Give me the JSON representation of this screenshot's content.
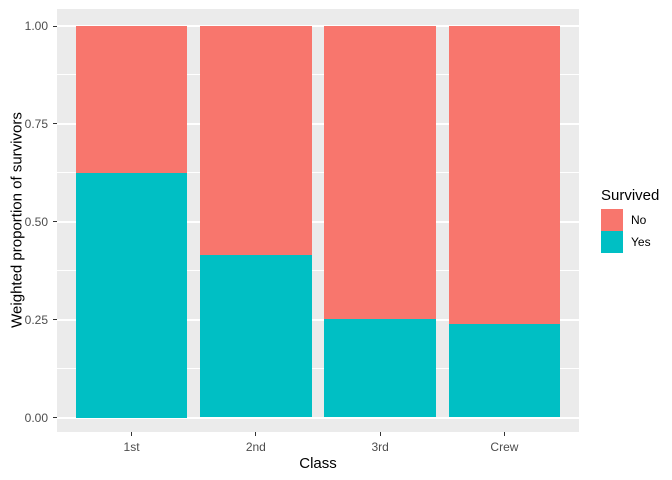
{
  "chart_data": {
    "type": "bar",
    "stacking": "fill",
    "title": "",
    "xlabel": "Class",
    "ylabel": "Weighted proportion of survivors",
    "categories": [
      "1st",
      "2nd",
      "3rd",
      "Crew"
    ],
    "series": [
      {
        "name": "No",
        "color": "#F8766D",
        "values": [
          0.375,
          0.586,
          0.748,
          0.76
        ]
      },
      {
        "name": "Yes",
        "color": "#00BFC4",
        "values": [
          0.625,
          0.414,
          0.252,
          0.24
        ]
      }
    ],
    "x_axis": {
      "tick_labels": [
        "1st",
        "2nd",
        "3rd",
        "Crew"
      ]
    },
    "y_axis": {
      "tick_labels": [
        "0.00",
        "0.25",
        "0.50",
        "0.75",
        "1.00"
      ],
      "tick_values": [
        0,
        0.25,
        0.5,
        0.75,
        1.0
      ],
      "minor_values": [
        0.125,
        0.375,
        0.625,
        0.875
      ],
      "range": [
        0,
        1
      ]
    },
    "legend": {
      "title": "Survived",
      "position": "right",
      "entries": [
        {
          "label": "No",
          "color": "#F8766D"
        },
        {
          "label": "Yes",
          "color": "#00BFC4"
        }
      ]
    },
    "colors": {
      "panel_background": "#EBEBEB",
      "grid": "#FFFFFF",
      "tick_mark": "#333333",
      "tick_label": "#4D4D4D",
      "axis_title": "#000000",
      "figure_background": "#FFFFFF"
    },
    "layout_hints": {
      "grid": "on",
      "bar_relative_width": 0.9
    }
  }
}
